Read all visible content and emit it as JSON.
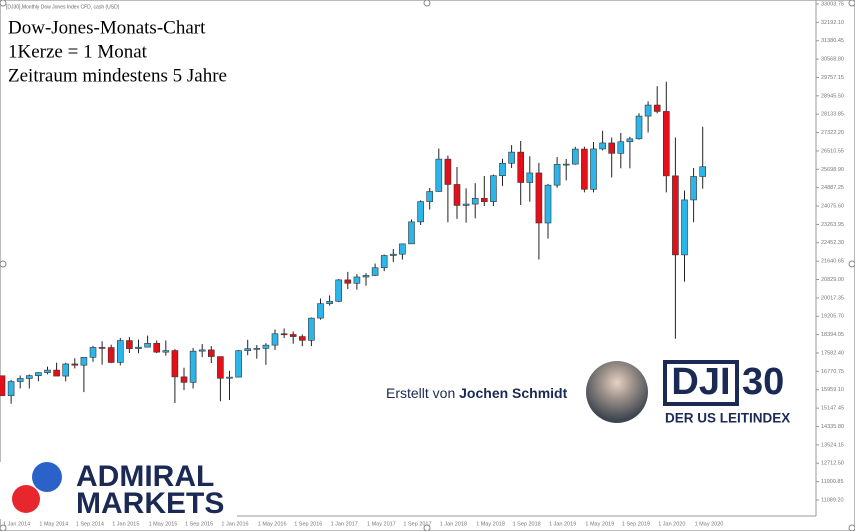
{
  "chart_data": {
    "type": "candlestick",
    "title": "Dow-Jones-Monats-Chart",
    "subtitle": "[DJ30],Monthly  Dow Jones Index CFD, cash (USD)",
    "annotations": [
      "1Kerze = 1 Monat",
      "Zeitraum mindestens 5 Jahre"
    ],
    "categories": [
      "1 Jan 2014",
      null,
      null,
      null,
      "1 May 2014",
      null,
      null,
      null,
      "1 Sep 2014",
      null,
      null,
      null,
      "1 Jan 2015",
      null,
      null,
      null,
      "1 May 2015",
      null,
      null,
      null,
      "1 Sep 2015",
      null,
      null,
      null,
      "1 Jan 2016",
      null,
      null,
      null,
      "1 May 2016",
      null,
      null,
      null,
      "1 Sep 2016",
      null,
      null,
      null,
      "1 Jan 2017",
      null,
      null,
      null,
      "1 May 2017",
      null,
      null,
      null,
      "1 Sep 2017",
      null,
      null,
      null,
      "1 Jan 2018",
      null,
      null,
      null,
      "1 May 2018",
      null,
      null,
      null,
      "1 Sep 2018",
      null,
      null,
      null,
      "1 Jan 2019",
      null,
      null,
      null,
      "1 May 2019",
      null,
      null,
      null,
      "1 Sep 2019",
      null,
      null,
      null,
      "1 Jan 2020",
      null,
      null,
      null,
      "1 May 2020",
      null
    ],
    "open": [
      16577,
      15699,
      16322,
      16458,
      16581,
      16717,
      16827,
      16563,
      17098,
      17043,
      17391,
      17828,
      17823,
      17165,
      18133,
      17776,
      17841,
      18011,
      17620,
      17690,
      16528,
      16285,
      17664,
      17720,
      17425,
      16466,
      16517,
      17685,
      17774,
      17787,
      17930,
      18432,
      18401,
      18308,
      18142,
      19124,
      19763,
      19864,
      20812,
      20663,
      20941,
      21009,
      21350,
      21891,
      21948,
      22405,
      23377,
      24272,
      24719,
      26149,
      25029,
      24103,
      24163,
      24416,
      24271,
      25415,
      25965,
      26458,
      25116,
      25538,
      23327,
      24999,
      25916,
      25929,
      26593,
      24815,
      26600,
      26864,
      26403,
      26917,
      27046,
      28051,
      28538,
      28256,
      25409,
      21917,
      24346,
      25383
    ],
    "high": [
      16588,
      16398,
      16588,
      16632,
      16736,
      16978,
      17152,
      17153,
      17350,
      17395,
      17895,
      18103,
      17951,
      18244,
      18289,
      18175,
      18351,
      18135,
      18138,
      17758,
      16933,
      17800,
      17978,
      17888,
      17425,
      16795,
      17716,
      18168,
      17934,
      18016,
      18622,
      18668,
      18534,
      18399,
      19152,
      19987,
      20125,
      20851,
      21169,
      21070,
      21113,
      21535,
      21930,
      22179,
      22420,
      23485,
      24327,
      24876,
      26617,
      26307,
      25800,
      24858,
      25087,
      25403,
      25462,
      26168,
      26770,
      26952,
      26277,
      25980,
      25057,
      26241,
      26156,
      26696,
      26696,
      26907,
      27399,
      27102,
      27306,
      27137,
      28175,
      28701,
      29374,
      29568,
      27102,
      24765,
      25759,
      27580
    ],
    "low": [
      15695,
      15340,
      16016,
      16015,
      16333,
      16645,
      16560,
      16334,
      16901,
      15855,
      17198,
      17068,
      17136,
      17038,
      17585,
      17572,
      17839,
      17576,
      17465,
      15370,
      15942,
      16013,
      17400,
      17139,
      15451,
      15503,
      16500,
      17484,
      17331,
      17063,
      17713,
      18247,
      17992,
      17883,
      17888,
      19057,
      19678,
      19831,
      20413,
      20379,
      20554,
      20984,
      21197,
      21600,
      21709,
      22400,
      23242,
      23921,
      24700,
      23360,
      23509,
      23345,
      23532,
      24077,
      24076,
      24965,
      25756,
      24122,
      24268,
      21713,
      22638,
      24883,
      25209,
      25900,
      24681,
      24680,
      26530,
      25339,
      25743,
      25743,
      27009,
      27325,
      28170,
      24681,
      18214,
      20735,
      23361,
      24843
    ],
    "close": [
      15699,
      16322,
      16458,
      16581,
      16717,
      16827,
      16563,
      17098,
      17043,
      17391,
      17828,
      17823,
      17165,
      18133,
      17776,
      17841,
      18011,
      17620,
      17690,
      16528,
      16285,
      17664,
      17720,
      17425,
      16466,
      16517,
      17685,
      17774,
      17787,
      17930,
      18432,
      18401,
      18308,
      18142,
      19124,
      19763,
      19864,
      20812,
      20663,
      20941,
      21009,
      21350,
      21891,
      21948,
      22405,
      23377,
      24272,
      24719,
      26149,
      25029,
      24103,
      24163,
      24416,
      24271,
      25415,
      25965,
      26458,
      25116,
      25538,
      23327,
      24999,
      25916,
      25929,
      26593,
      24815,
      26600,
      26864,
      26403,
      26917,
      27046,
      28051,
      28538,
      28256,
      25409,
      21917,
      24346,
      25383,
      25813
    ],
    "up_color": "#2cb5e8",
    "down_color": "#e3101a",
    "ylim": [
      10380,
      33180
    ],
    "yticks": [
      {
        "value": 11089.2,
        "label": "11089.20"
      },
      {
        "value": 11900.85,
        "label": "11900.85"
      },
      {
        "value": 12712.5,
        "label": "12712.50"
      },
      {
        "value": 13524.15,
        "label": "13524.15"
      },
      {
        "value": 14335.8,
        "label": "14335.80"
      },
      {
        "value": 15147.45,
        "label": "15147.45"
      },
      {
        "value": 15959.1,
        "label": "15959.10"
      },
      {
        "value": 16770.75,
        "label": "16770.75"
      },
      {
        "value": 17582.4,
        "label": "17582.40"
      },
      {
        "value": 18394.05,
        "label": "18394.05"
      },
      {
        "value": 19205.7,
        "label": "19205.70"
      },
      {
        "value": 20017.35,
        "label": "20017.35"
      },
      {
        "value": 20829,
        "label": "20829.00"
      },
      {
        "value": 21640.65,
        "label": "21640.65"
      },
      {
        "value": 22452.3,
        "label": "22452.30"
      },
      {
        "value": 23263.95,
        "label": "23263.95"
      },
      {
        "value": 24075.6,
        "label": "24075.60"
      },
      {
        "value": 24887.25,
        "label": "24887.25"
      },
      {
        "value": 25698.9,
        "label": "25698.90"
      },
      {
        "value": 26510.55,
        "label": "26510.55"
      },
      {
        "value": 27322.2,
        "label": "27322.20"
      },
      {
        "value": 28133.85,
        "label": "28133.85"
      },
      {
        "value": 28945.5,
        "label": "28945.50"
      },
      {
        "value": 29757.15,
        "label": "29757.15"
      },
      {
        "value": 30568.8,
        "label": "30568.80"
      },
      {
        "value": 31380.45,
        "label": "31380.45"
      },
      {
        "value": 32192.1,
        "label": "32192.10"
      },
      {
        "value": 33003.75,
        "label": "33003.75"
      }
    ]
  },
  "branding": {
    "created_by": "Erstellt von",
    "author": "Jochen Schmidt",
    "index_name": "DJI",
    "index_number": "30",
    "index_tagline": "DER US LEITINDEX",
    "broker_line1": "ADMIRAL",
    "broker_line2": "MARKETS"
  }
}
